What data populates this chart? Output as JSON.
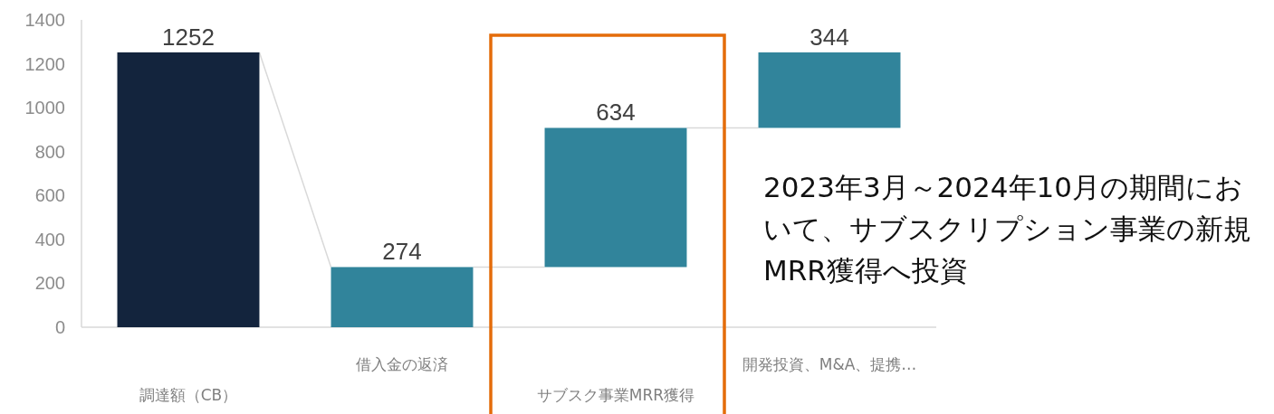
{
  "chart_data": {
    "type": "bar",
    "categories": [
      "調達額（CB）",
      "借入金の返済",
      "サブスク事業MRR獲得",
      "開発投資、M&A、提携…"
    ],
    "values": [
      1252,
      274,
      634,
      344
    ],
    "base": [
      0,
      0,
      274,
      908
    ],
    "colors": [
      "#13243d",
      "#31849b",
      "#31849b",
      "#31849b"
    ],
    "ylim": [
      0,
      1400
    ],
    "yticks": [
      0,
      200,
      400,
      600,
      800,
      1000,
      1200,
      1400
    ],
    "data_labels": true,
    "annotations": [
      "2023年3月～2024年10月の期間において、サブスクリプション事業の新規MRR獲得へ投資"
    ]
  }
}
